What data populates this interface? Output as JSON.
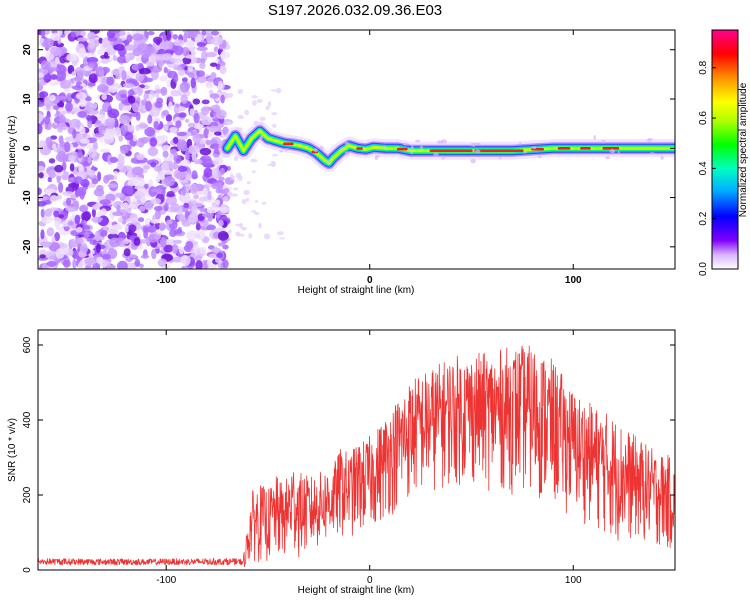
{
  "title": "S197.2026.032.09.36.E03",
  "chart_data": [
    {
      "type": "heatmap",
      "name": "spectrogram",
      "xlabel": "Height of straight line (km)",
      "ylabel": "Frequency (Hz)",
      "xlim": [
        -163,
        150
      ],
      "ylim": [
        -24.5,
        24
      ],
      "xticks": [
        -100,
        0,
        100
      ],
      "yticks": [
        -20,
        -10,
        0,
        10,
        20
      ],
      "noise_region_x": [
        -163,
        -70
      ],
      "ridge": {
        "x": [
          -70,
          -66,
          -62,
          -58,
          -54,
          -50,
          -46,
          -42,
          -38,
          -34,
          -30,
          -26,
          -22,
          -20,
          -18,
          -14,
          -10,
          -6,
          -2,
          2,
          8,
          14,
          20,
          30,
          50,
          70,
          90,
          110,
          130,
          150
        ],
        "freq": [
          0,
          2.5,
          -0.5,
          2,
          3.5,
          2,
          1.5,
          1,
          0.8,
          0.5,
          0,
          -1,
          -2.5,
          -3,
          -2,
          -0.5,
          0.5,
          0,
          -0.2,
          0.2,
          0,
          0,
          -0.5,
          -0.5,
          -0.5,
          -0.5,
          0,
          0,
          0,
          0
        ]
      },
      "colorbar": {
        "label": "Normalized spectral amplitude",
        "range": [
          0,
          0.95
        ],
        "ticks": [
          0.0,
          0.2,
          0.4,
          0.6,
          0.8
        ],
        "tick_labels": [
          "0.0",
          "0.2",
          "0.4",
          "0.6",
          "0.8"
        ]
      }
    },
    {
      "type": "line",
      "name": "snr",
      "xlabel": "Height of straight line (km)",
      "ylabel": "SNR (10 * v/v)",
      "xlim": [
        -163,
        150
      ],
      "ylim": [
        0,
        640
      ],
      "xticks": [
        -100,
        0,
        100
      ],
      "yticks": [
        0,
        200,
        400,
        600
      ],
      "color": "#ee3333",
      "envelope": {
        "x": [
          -163,
          -110,
          -70,
          -62,
          -58,
          -54,
          -50,
          -46,
          -42,
          -38,
          -34,
          -30,
          -26,
          -22,
          -18,
          -14,
          -10,
          -6,
          -2,
          2,
          6,
          10,
          15,
          20,
          30,
          40,
          50,
          60,
          70,
          80,
          90,
          100,
          110,
          120,
          130,
          140,
          150
        ],
        "upper": [
          40,
          38,
          40,
          38,
          210,
          230,
          215,
          250,
          230,
          290,
          260,
          250,
          255,
          270,
          280,
          330,
          310,
          340,
          350,
          365,
          400,
          430,
          470,
          510,
          540,
          570,
          580,
          580,
          600,
          600,
          560,
          480,
          440,
          410,
          360,
          320,
          300
        ],
        "lower": [
          5,
          5,
          5,
          5,
          20,
          20,
          15,
          20,
          20,
          30,
          30,
          35,
          50,
          60,
          70,
          80,
          80,
          90,
          90,
          110,
          120,
          140,
          160,
          180,
          200,
          220,
          220,
          210,
          200,
          190,
          160,
          140,
          110,
          70,
          70,
          60,
          40
        ]
      }
    }
  ]
}
